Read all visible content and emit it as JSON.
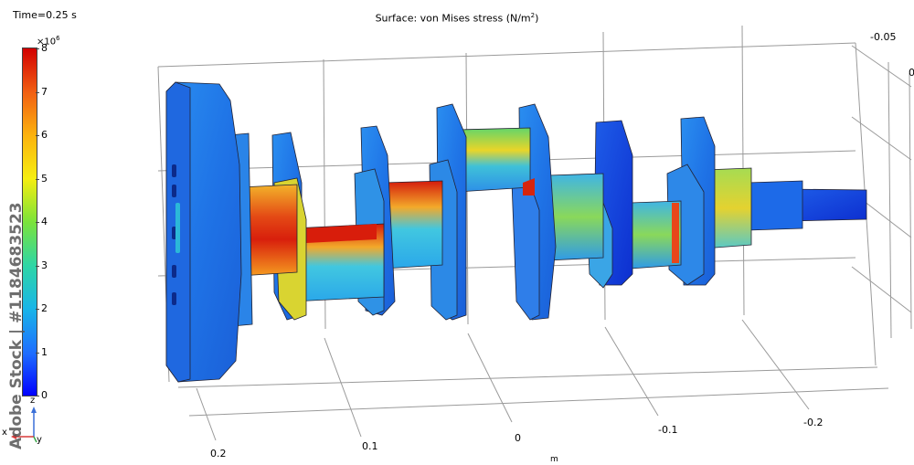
{
  "time_label": "Time=0.25 s",
  "plot_title": "Surface: von Mises stress (N/m",
  "plot_title_sup": "2",
  "plot_title_end": ")",
  "colorbar": {
    "multiplier_base": "×10",
    "multiplier_exp": "6",
    "ticks": [
      "8",
      "7",
      "6",
      "5",
      "4",
      "3",
      "2",
      "1",
      "0"
    ],
    "colors": [
      "#0000ff",
      "#1e6cff",
      "#19b5e8",
      "#2ed6a5",
      "#7be33b",
      "#f6ee10",
      "#fcb20e",
      "#f15e12",
      "#d20000"
    ]
  },
  "axes": {
    "x_ticks": [
      "0.2",
      "0.1",
      "0",
      "-0.1",
      "-0.2"
    ],
    "x_unit": "m",
    "right_ticks": [
      "-0.05",
      "0"
    ]
  },
  "triad": {
    "z": "z",
    "x": "x",
    "y": "y"
  },
  "watermark": "Adobe Stock | #1184683523"
}
